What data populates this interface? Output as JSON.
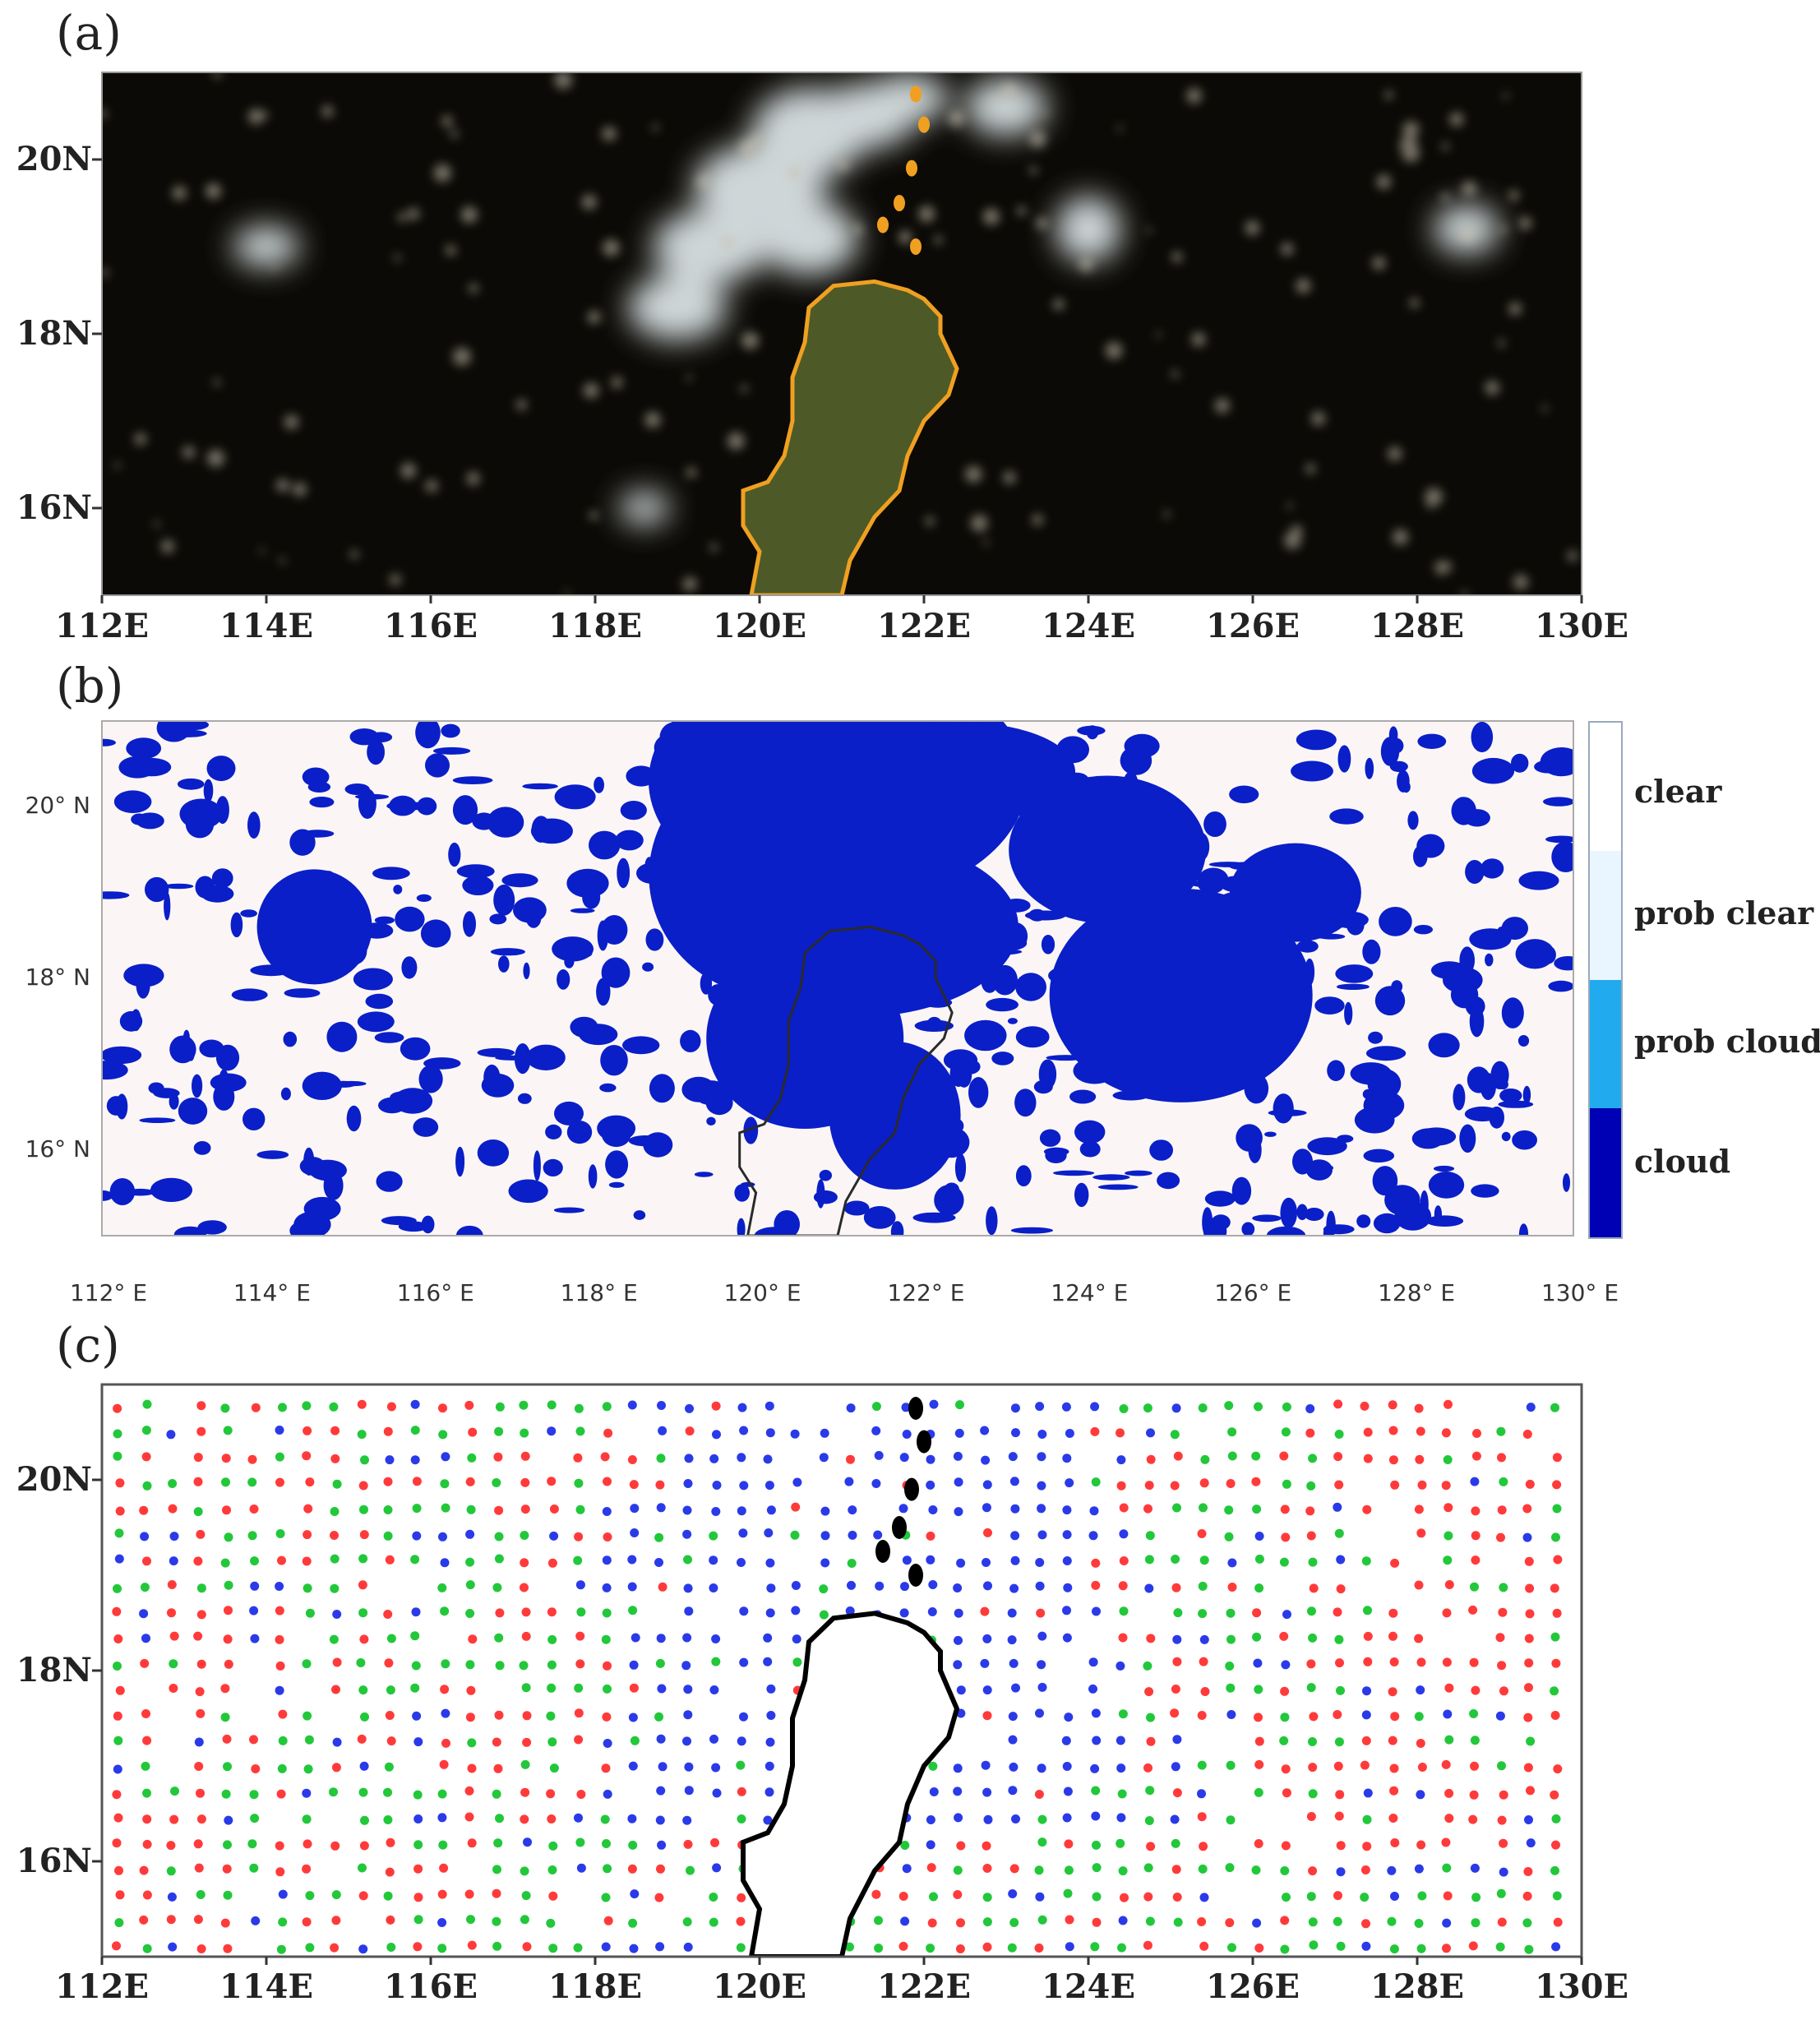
{
  "panels": [
    {
      "id": "a",
      "label": "(a)",
      "type": "satellite-true-color"
    },
    {
      "id": "b",
      "label": "(b)",
      "type": "cloud-mask"
    },
    {
      "id": "c",
      "label": "(c)",
      "type": "observation-points"
    }
  ],
  "axes": {
    "lon_labels_bold": [
      "112E",
      "114E",
      "116E",
      "118E",
      "120E",
      "122E",
      "124E",
      "126E",
      "128E",
      "130E"
    ],
    "lat_labels_bold": [
      "20N",
      "18N",
      "16N"
    ],
    "lon_labels_thin": [
      "112° E",
      "114° E",
      "116° E",
      "118° E",
      "120° E",
      "122° E",
      "124° E",
      "126° E",
      "128° E",
      "130° E"
    ],
    "lat_labels_thin": [
      "20° N",
      "18° N",
      "16° N"
    ],
    "lon_values": [
      112,
      114,
      116,
      118,
      120,
      122,
      124,
      126,
      128,
      130
    ],
    "lat_values": [
      20,
      18,
      16
    ],
    "lon_range": [
      112,
      130
    ],
    "lat_range": [
      15,
      21
    ]
  },
  "legend_b": {
    "items": [
      {
        "label": "clear",
        "color": "#ffffff"
      },
      {
        "label": "prob clear",
        "color": "#eaf6ff"
      },
      {
        "label": "prob cloud",
        "color": "#22aaee"
      },
      {
        "label": "cloud",
        "color": "#0000b4"
      }
    ]
  },
  "colors": {
    "satellite_bg": "#0c0a06",
    "cloud_white": "#e8eef0",
    "land_green": "#4f5e2a",
    "coast_orange": "#f0a020",
    "mask_blue": "#0a1fc8",
    "mask_bg": "#fbf6f5",
    "pt_red": "#ff3a3a",
    "pt_green": "#22c83a",
    "pt_blue": "#2a3ae8"
  }
}
